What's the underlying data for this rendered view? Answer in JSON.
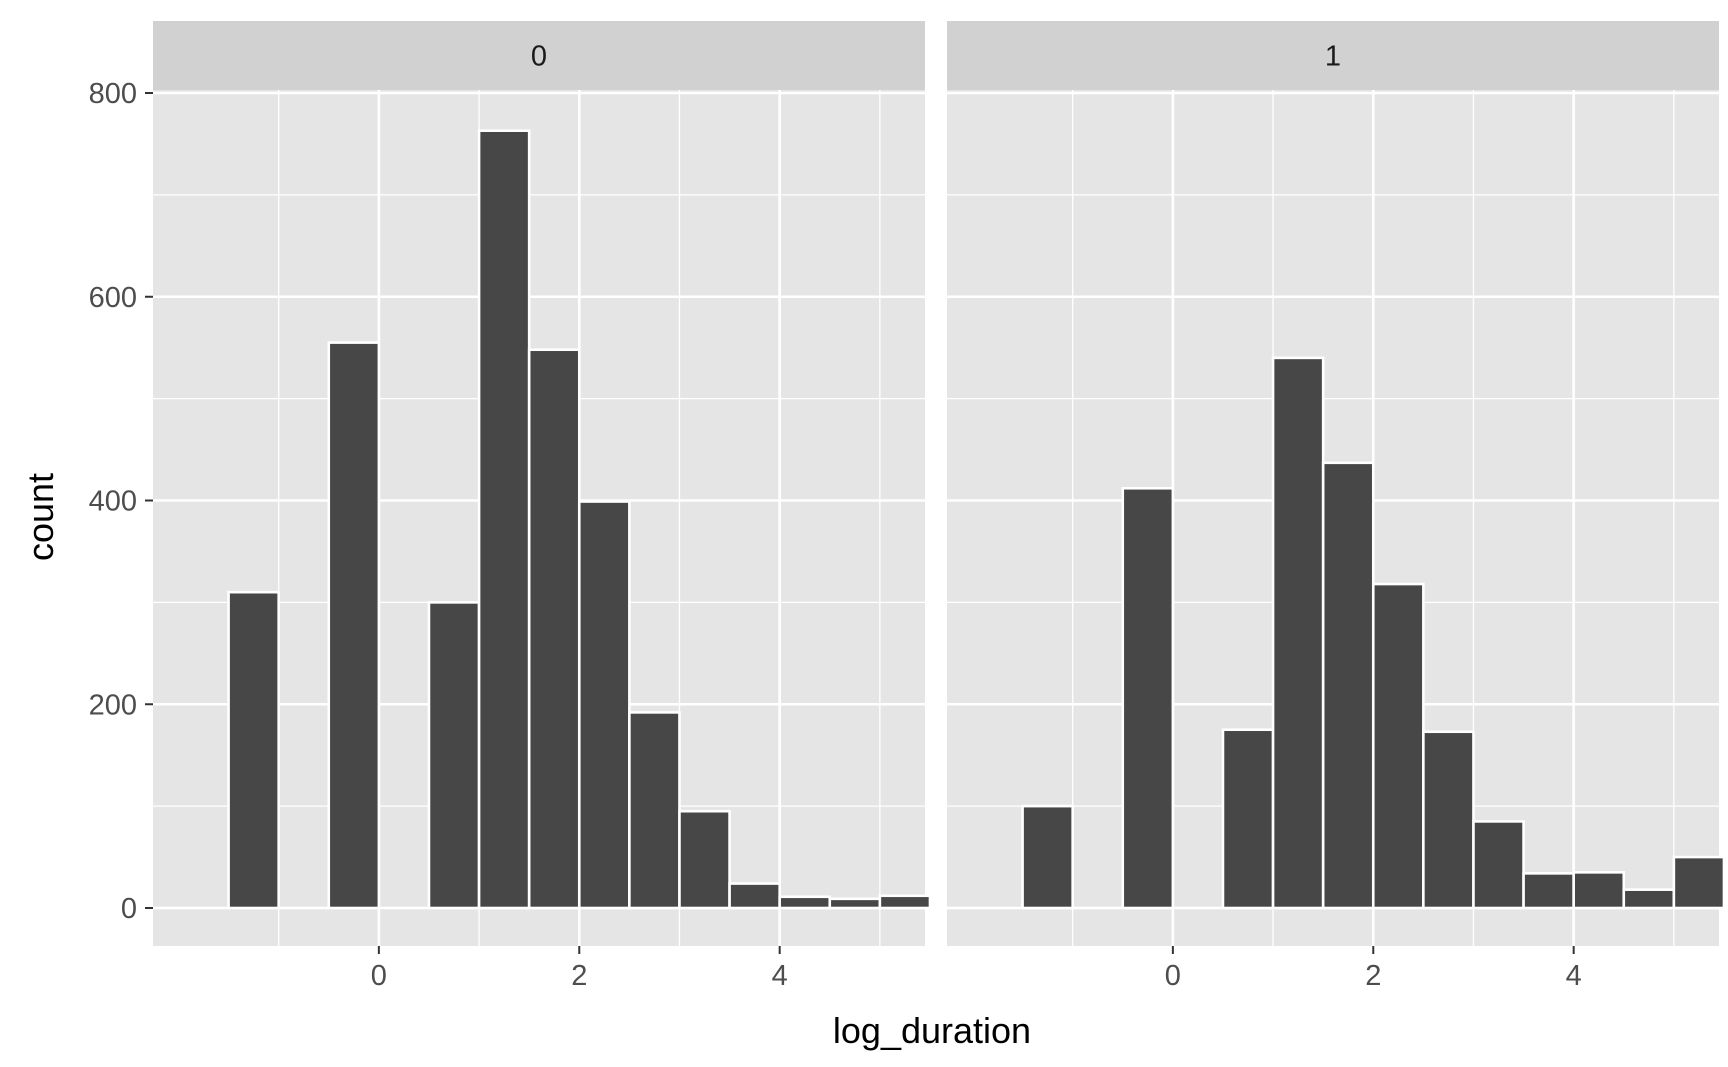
{
  "chart_data": {
    "type": "bar",
    "xlabel": "log_duration",
    "ylabel": "count",
    "ylim": [
      0,
      800
    ],
    "xlim": [
      -1.85,
      5.85
    ],
    "y_ticks": [
      0,
      200,
      400,
      600,
      800
    ],
    "x_ticks": [
      0,
      2,
      4
    ],
    "grid": true,
    "bin_width": 0.5,
    "panels": [
      {
        "label": "0",
        "bins": [
          {
            "x": -1.25,
            "count": 310
          },
          {
            "x": -0.75,
            "count": 0
          },
          {
            "x": -0.25,
            "count": 555
          },
          {
            "x": 0.25,
            "count": 0
          },
          {
            "x": 0.75,
            "count": 300
          },
          {
            "x": 1.25,
            "count": 763
          },
          {
            "x": 1.75,
            "count": 548
          },
          {
            "x": 2.25,
            "count": 399
          },
          {
            "x": 2.75,
            "count": 192
          },
          {
            "x": 3.25,
            "count": 95
          },
          {
            "x": 3.75,
            "count": 24
          },
          {
            "x": 4.25,
            "count": 11
          },
          {
            "x": 4.75,
            "count": 9
          },
          {
            "x": 5.25,
            "count": 12
          }
        ]
      },
      {
        "label": "1",
        "bins": [
          {
            "x": -1.25,
            "count": 100
          },
          {
            "x": -0.75,
            "count": 0
          },
          {
            "x": -0.25,
            "count": 412
          },
          {
            "x": 0.25,
            "count": 0
          },
          {
            "x": 0.75,
            "count": 175
          },
          {
            "x": 1.25,
            "count": 540
          },
          {
            "x": 1.75,
            "count": 437
          },
          {
            "x": 2.25,
            "count": 318
          },
          {
            "x": 2.75,
            "count": 173
          },
          {
            "x": 3.25,
            "count": 85
          },
          {
            "x": 3.75,
            "count": 34
          },
          {
            "x": 4.25,
            "count": 35
          },
          {
            "x": 4.75,
            "count": 18
          },
          {
            "x": 5.25,
            "count": 50
          }
        ]
      }
    ],
    "colors": {
      "panel_bg": "#e5e5e5",
      "strip_bg": "#d1d1d1",
      "grid": "#ffffff",
      "bar_fill": "#474747",
      "bar_stroke": "#ffffff",
      "tick": "#333333"
    }
  }
}
